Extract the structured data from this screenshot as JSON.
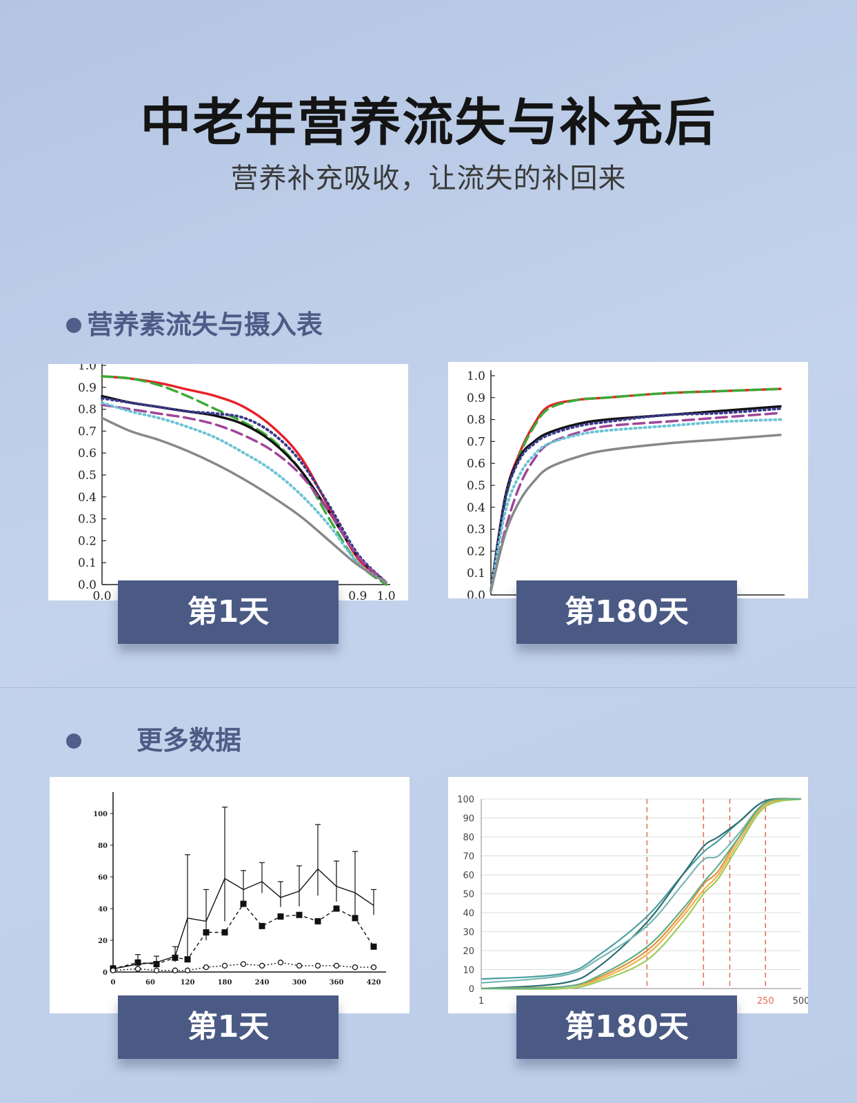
{
  "header": {
    "title": "中老年营养流失与补充后",
    "subtitle": "营养补充吸收，让流失的补回来"
  },
  "section1": {
    "label": "营养素流失与摄入表"
  },
  "section2": {
    "label": "更多数据"
  },
  "tags": {
    "s1_left": "第1天",
    "s1_right": "第180天",
    "s2_left": "第1天",
    "s2_right": "第180天"
  },
  "chart_data": [
    {
      "type": "line",
      "ylim": [
        0.0,
        1.0
      ],
      "xlim": [
        0.0,
        1.0
      ],
      "yticks": [
        "0.0",
        "0.1",
        "0.2",
        "0.3",
        "0.4",
        "0.5",
        "0.6",
        "0.7",
        "0.8",
        "0.9",
        "1.0"
      ],
      "xticks_visible": [
        "0.0",
        "0.9",
        "1.0"
      ],
      "series": [
        {
          "color": "#e8202a",
          "style": "solid",
          "x": [
            0,
            0.1,
            0.2,
            0.3,
            0.4,
            0.5,
            0.6,
            0.7,
            0.8,
            0.9,
            1.0
          ],
          "y": [
            0.95,
            0.94,
            0.92,
            0.89,
            0.86,
            0.81,
            0.72,
            0.58,
            0.35,
            0.12,
            0.01
          ]
        },
        {
          "color": "#3aaa35",
          "style": "dashed",
          "x": [
            0,
            0.1,
            0.2,
            0.3,
            0.4,
            0.5,
            0.6,
            0.7,
            0.8,
            0.9,
            1.0
          ],
          "y": [
            0.95,
            0.94,
            0.91,
            0.86,
            0.8,
            0.74,
            0.66,
            0.52,
            0.3,
            0.1,
            0.0
          ]
        },
        {
          "color": "#111111",
          "style": "solid",
          "x": [
            0,
            0.1,
            0.2,
            0.3,
            0.4,
            0.5,
            0.6,
            0.7,
            0.8,
            0.9,
            1.0
          ],
          "y": [
            0.86,
            0.83,
            0.81,
            0.79,
            0.77,
            0.73,
            0.65,
            0.52,
            0.33,
            0.13,
            0.01
          ]
        },
        {
          "color": "#3a3a8c",
          "style": "dotted",
          "x": [
            0,
            0.1,
            0.2,
            0.3,
            0.4,
            0.5,
            0.6,
            0.7,
            0.8,
            0.9,
            1.0
          ],
          "y": [
            0.85,
            0.83,
            0.81,
            0.79,
            0.78,
            0.76,
            0.69,
            0.56,
            0.36,
            0.14,
            0.01
          ]
        },
        {
          "color": "#a0449a",
          "style": "dashed",
          "x": [
            0,
            0.1,
            0.2,
            0.3,
            0.4,
            0.5,
            0.6,
            0.7,
            0.8,
            0.9,
            1.0
          ],
          "y": [
            0.82,
            0.8,
            0.78,
            0.76,
            0.73,
            0.68,
            0.61,
            0.5,
            0.33,
            0.13,
            0.01
          ]
        },
        {
          "color": "#6cc3d5",
          "style": "dotted",
          "x": [
            0,
            0.1,
            0.2,
            0.3,
            0.4,
            0.5,
            0.6,
            0.7,
            0.8,
            0.9,
            1.0
          ],
          "y": [
            0.83,
            0.79,
            0.76,
            0.72,
            0.67,
            0.6,
            0.52,
            0.41,
            0.27,
            0.1,
            0.01
          ]
        },
        {
          "color": "#888888",
          "style": "solid",
          "x": [
            0,
            0.1,
            0.2,
            0.3,
            0.4,
            0.5,
            0.6,
            0.7,
            0.8,
            0.9,
            1.0
          ],
          "y": [
            0.76,
            0.7,
            0.66,
            0.61,
            0.55,
            0.48,
            0.4,
            0.31,
            0.2,
            0.09,
            0.01
          ]
        }
      ]
    },
    {
      "type": "line",
      "ylim": [
        0.0,
        1.0
      ],
      "xlim": [
        0.0,
        1.0
      ],
      "yticks": [
        "0.0",
        "0.1",
        "0.2",
        "0.3",
        "0.4",
        "0.5",
        "0.6",
        "0.7",
        "0.8",
        "0.9",
        "1.0"
      ],
      "series": [
        {
          "color": "#e8202a",
          "style": "solid",
          "x": [
            0,
            0.05,
            0.1,
            0.15,
            0.2,
            0.3,
            0.4,
            0.6,
            0.8,
            1.0
          ],
          "y": [
            0.02,
            0.45,
            0.65,
            0.78,
            0.86,
            0.89,
            0.9,
            0.92,
            0.93,
            0.94
          ]
        },
        {
          "color": "#3aaa35",
          "style": "dashed",
          "x": [
            0,
            0.05,
            0.1,
            0.15,
            0.2,
            0.3,
            0.4,
            0.6,
            0.8,
            1.0
          ],
          "y": [
            0.02,
            0.43,
            0.64,
            0.77,
            0.85,
            0.89,
            0.9,
            0.92,
            0.93,
            0.94
          ]
        },
        {
          "color": "#111111",
          "style": "solid",
          "x": [
            0,
            0.05,
            0.1,
            0.15,
            0.2,
            0.3,
            0.4,
            0.6,
            0.8,
            1.0
          ],
          "y": [
            0.02,
            0.45,
            0.63,
            0.7,
            0.74,
            0.78,
            0.8,
            0.82,
            0.84,
            0.86
          ]
        },
        {
          "color": "#3a3a8c",
          "style": "dotted",
          "x": [
            0,
            0.05,
            0.1,
            0.15,
            0.2,
            0.3,
            0.4,
            0.6,
            0.8,
            1.0
          ],
          "y": [
            0.02,
            0.44,
            0.62,
            0.69,
            0.73,
            0.77,
            0.79,
            0.82,
            0.83,
            0.85
          ]
        },
        {
          "color": "#a0449a",
          "style": "dashed",
          "x": [
            0,
            0.05,
            0.1,
            0.15,
            0.2,
            0.3,
            0.4,
            0.6,
            0.8,
            1.0
          ],
          "y": [
            0.02,
            0.3,
            0.5,
            0.62,
            0.69,
            0.74,
            0.77,
            0.79,
            0.81,
            0.83
          ]
        },
        {
          "color": "#6cc3d5",
          "style": "dotted",
          "x": [
            0,
            0.05,
            0.1,
            0.15,
            0.2,
            0.3,
            0.4,
            0.6,
            0.8,
            1.0
          ],
          "y": [
            0.02,
            0.38,
            0.55,
            0.64,
            0.69,
            0.73,
            0.75,
            0.77,
            0.79,
            0.8
          ]
        },
        {
          "color": "#888888",
          "style": "solid",
          "x": [
            0,
            0.05,
            0.1,
            0.15,
            0.2,
            0.3,
            0.4,
            0.6,
            0.8,
            1.0
          ],
          "y": [
            0.02,
            0.28,
            0.43,
            0.52,
            0.58,
            0.63,
            0.66,
            0.69,
            0.71,
            0.73
          ]
        }
      ]
    },
    {
      "type": "line",
      "ylim": [
        0,
        110
      ],
      "xlim": [
        0,
        440
      ],
      "yticks": [
        "0",
        "20",
        "40",
        "60",
        "80",
        "100"
      ],
      "xticks": [
        "0",
        "60",
        "120",
        "180",
        "240",
        "300",
        "360",
        "420"
      ],
      "series": [
        {
          "marker": "none",
          "style": "solid",
          "x": [
            0,
            40,
            70,
            100,
            120,
            150,
            180,
            210,
            240,
            270,
            300,
            330,
            360,
            390,
            420
          ],
          "y": [
            2,
            5,
            6,
            10,
            34,
            32,
            59,
            52,
            57,
            47,
            51,
            65,
            54,
            50,
            42
          ]
        },
        {
          "marker": "filled-square",
          "style": "dashed",
          "x": [
            0,
            40,
            70,
            100,
            120,
            150,
            180,
            210,
            240,
            270,
            300,
            330,
            360,
            390,
            420
          ],
          "y": [
            2,
            6,
            5,
            9,
            8,
            25,
            25,
            43,
            29,
            35,
            36,
            32,
            40,
            34,
            16
          ]
        },
        {
          "marker": "open-circle",
          "style": "dotted",
          "x": [
            0,
            40,
            70,
            100,
            120,
            150,
            180,
            210,
            240,
            270,
            300,
            330,
            360,
            390,
            420
          ],
          "y": [
            1,
            2,
            1,
            1,
            1,
            3,
            4,
            5,
            4,
            6,
            4,
            4,
            4,
            3,
            3
          ]
        }
      ]
    },
    {
      "type": "line",
      "ylim": [
        0,
        100
      ],
      "yticks": [
        "0",
        "10",
        "20",
        "30",
        "40",
        "50",
        "60",
        "70",
        "80",
        "90",
        "100"
      ],
      "xticks_visible": [
        "1",
        "250",
        "500"
      ],
      "x_scale": "log",
      "series": [
        {
          "color": "#4a9ea0",
          "x": [
            1,
            5,
            10,
            25,
            50,
            75,
            100,
            150,
            250,
            500
          ],
          "y": [
            5,
            8,
            18,
            38,
            60,
            72,
            78,
            88,
            99,
            100
          ]
        },
        {
          "color": "#2e6e72",
          "x": [
            1,
            5,
            10,
            25,
            50,
            75,
            100,
            150,
            250,
            500
          ],
          "y": [
            0,
            3,
            12,
            35,
            60,
            75,
            80,
            88,
            99,
            100
          ]
        },
        {
          "color": "#79b7b3",
          "x": [
            1,
            5,
            10,
            25,
            50,
            75,
            100,
            150,
            250,
            500
          ],
          "y": [
            3,
            7,
            16,
            33,
            55,
            68,
            70,
            82,
            98,
            100
          ]
        },
        {
          "color": "#e4903b",
          "x": [
            1,
            5,
            10,
            25,
            50,
            75,
            100,
            150,
            250,
            500
          ],
          "y": [
            0,
            1,
            6,
            20,
            40,
            55,
            62,
            80,
            98,
            100
          ]
        },
        {
          "color": "#f0b04a",
          "x": [
            1,
            5,
            10,
            25,
            50,
            75,
            100,
            150,
            250,
            500
          ],
          "y": [
            0,
            1,
            5,
            18,
            38,
            52,
            60,
            78,
            97,
            100
          ]
        },
        {
          "color": "#9acb58",
          "x": [
            1,
            5,
            10,
            25,
            50,
            75,
            100,
            150,
            250,
            500
          ],
          "y": [
            0,
            0,
            4,
            15,
            35,
            50,
            58,
            76,
            96,
            100
          ]
        },
        {
          "color": "#5fae8a",
          "x": [
            1,
            5,
            10,
            25,
            50,
            75,
            100,
            150,
            250,
            500
          ],
          "y": [
            0,
            1,
            7,
            22,
            42,
            56,
            65,
            80,
            98,
            100
          ]
        }
      ],
      "reference_lines_x": [
        25,
        75,
        125,
        250
      ]
    }
  ]
}
